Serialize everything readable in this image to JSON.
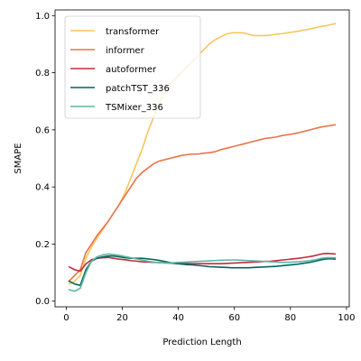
{
  "chart_data": {
    "type": "line",
    "title": "",
    "xlabel": "Prediction Length",
    "ylabel": "SMAPE",
    "xlim": [
      -4,
      101
    ],
    "ylim": [
      -0.02,
      1.02
    ],
    "xticks": [
      0,
      20,
      40,
      60,
      80,
      100
    ],
    "yticks": [
      0.0,
      0.2,
      0.4,
      0.6,
      0.8,
      1.0
    ],
    "xtick_labels": [
      "0",
      "20",
      "40",
      "60",
      "80",
      "100"
    ],
    "ytick_labels": [
      "0.0",
      "0.2",
      "0.4",
      "0.6",
      "0.8",
      "1.0"
    ],
    "grid": false,
    "legend_position": "upper-left",
    "series": [
      {
        "name": "transformer",
        "color": "#f9c55c",
        "x": [
          1,
          3,
          5,
          7,
          9,
          11,
          13,
          15,
          17,
          19,
          21,
          23,
          25,
          27,
          29,
          31,
          33,
          35,
          37,
          39,
          41,
          43,
          45,
          47,
          49,
          51,
          53,
          55,
          57,
          59,
          61,
          63,
          65,
          67,
          69,
          71,
          73,
          75,
          77,
          79,
          81,
          83,
          85,
          87,
          89,
          91,
          93,
          95,
          96
        ],
        "values": [
          0.06,
          0.07,
          0.09,
          0.15,
          0.19,
          0.22,
          0.25,
          0.28,
          0.31,
          0.34,
          0.38,
          0.43,
          0.48,
          0.53,
          0.59,
          0.64,
          0.69,
          0.73,
          0.76,
          0.78,
          0.8,
          0.82,
          0.84,
          0.86,
          0.88,
          0.9,
          0.915,
          0.925,
          0.935,
          0.94,
          0.94,
          0.94,
          0.935,
          0.93,
          0.93,
          0.93,
          0.932,
          0.935,
          0.937,
          0.94,
          0.943,
          0.946,
          0.95,
          0.953,
          0.958,
          0.962,
          0.965,
          0.97,
          0.972
        ]
      },
      {
        "name": "informer",
        "color": "#e9734a",
        "x": [
          1,
          3,
          5,
          7,
          9,
          11,
          13,
          15,
          17,
          19,
          21,
          23,
          25,
          27,
          29,
          31,
          33,
          35,
          37,
          39,
          41,
          43,
          45,
          47,
          49,
          51,
          53,
          55,
          57,
          59,
          61,
          63,
          65,
          67,
          69,
          71,
          73,
          75,
          77,
          79,
          81,
          83,
          85,
          87,
          89,
          91,
          93,
          95,
          96
        ],
        "values": [
          0.07,
          0.09,
          0.11,
          0.17,
          0.2,
          0.23,
          0.255,
          0.28,
          0.31,
          0.34,
          0.37,
          0.4,
          0.43,
          0.45,
          0.465,
          0.48,
          0.49,
          0.495,
          0.5,
          0.505,
          0.51,
          0.513,
          0.515,
          0.515,
          0.518,
          0.52,
          0.523,
          0.53,
          0.535,
          0.54,
          0.545,
          0.55,
          0.555,
          0.56,
          0.565,
          0.57,
          0.572,
          0.575,
          0.58,
          0.583,
          0.586,
          0.59,
          0.595,
          0.6,
          0.605,
          0.61,
          0.613,
          0.616,
          0.618
        ]
      },
      {
        "name": "autoformer",
        "color": "#c42b3e",
        "x": [
          1,
          3,
          5,
          7,
          9,
          11,
          13,
          15,
          17,
          19,
          21,
          23,
          25,
          27,
          29,
          31,
          33,
          35,
          37,
          39,
          41,
          43,
          45,
          47,
          49,
          51,
          53,
          55,
          57,
          59,
          61,
          63,
          65,
          67,
          69,
          71,
          73,
          75,
          77,
          79,
          81,
          83,
          85,
          87,
          89,
          91,
          93,
          95,
          96
        ],
        "values": [
          0.12,
          0.11,
          0.105,
          0.13,
          0.145,
          0.15,
          0.152,
          0.153,
          0.15,
          0.147,
          0.145,
          0.142,
          0.14,
          0.138,
          0.137,
          0.136,
          0.135,
          0.134,
          0.133,
          0.132,
          0.132,
          0.132,
          0.131,
          0.131,
          0.131,
          0.131,
          0.131,
          0.131,
          0.132,
          0.133,
          0.134,
          0.135,
          0.136,
          0.137,
          0.138,
          0.139,
          0.14,
          0.142,
          0.144,
          0.146,
          0.148,
          0.15,
          0.153,
          0.156,
          0.16,
          0.165,
          0.167,
          0.166,
          0.165
        ]
      },
      {
        "name": "patchTST_336",
        "color": "#00665e",
        "x": [
          1,
          3,
          5,
          7,
          9,
          11,
          13,
          15,
          17,
          19,
          21,
          23,
          25,
          27,
          29,
          31,
          33,
          35,
          37,
          39,
          41,
          43,
          45,
          47,
          49,
          51,
          53,
          55,
          57,
          59,
          61,
          63,
          65,
          67,
          69,
          71,
          73,
          75,
          77,
          79,
          81,
          83,
          85,
          87,
          89,
          91,
          93,
          95,
          96
        ],
        "values": [
          0.07,
          0.06,
          0.055,
          0.11,
          0.14,
          0.15,
          0.155,
          0.158,
          0.158,
          0.155,
          0.152,
          0.15,
          0.15,
          0.15,
          0.148,
          0.146,
          0.143,
          0.139,
          0.135,
          0.132,
          0.13,
          0.128,
          0.127,
          0.125,
          0.123,
          0.121,
          0.12,
          0.119,
          0.118,
          0.117,
          0.117,
          0.117,
          0.117,
          0.118,
          0.119,
          0.12,
          0.121,
          0.122,
          0.124,
          0.126,
          0.128,
          0.13,
          0.133,
          0.136,
          0.14,
          0.145,
          0.148,
          0.148,
          0.147
        ]
      },
      {
        "name": "TSMixer_336",
        "color": "#5cb5a0",
        "x": [
          1,
          3,
          5,
          7,
          9,
          11,
          13,
          15,
          17,
          19,
          21,
          23,
          25,
          27,
          29,
          31,
          33,
          35,
          37,
          39,
          41,
          43,
          45,
          47,
          49,
          51,
          53,
          55,
          57,
          59,
          61,
          63,
          65,
          67,
          69,
          71,
          73,
          75,
          77,
          79,
          81,
          83,
          85,
          87,
          89,
          91,
          93,
          95,
          96
        ],
        "values": [
          0.04,
          0.035,
          0.045,
          0.1,
          0.14,
          0.155,
          0.162,
          0.165,
          0.163,
          0.16,
          0.156,
          0.152,
          0.148,
          0.144,
          0.14,
          0.137,
          0.135,
          0.134,
          0.134,
          0.135,
          0.136,
          0.137,
          0.138,
          0.139,
          0.14,
          0.141,
          0.142,
          0.143,
          0.144,
          0.144,
          0.144,
          0.143,
          0.142,
          0.141,
          0.14,
          0.139,
          0.138,
          0.137,
          0.136,
          0.136,
          0.137,
          0.138,
          0.14,
          0.142,
          0.145,
          0.15,
          0.152,
          0.152,
          0.152
        ]
      }
    ]
  }
}
